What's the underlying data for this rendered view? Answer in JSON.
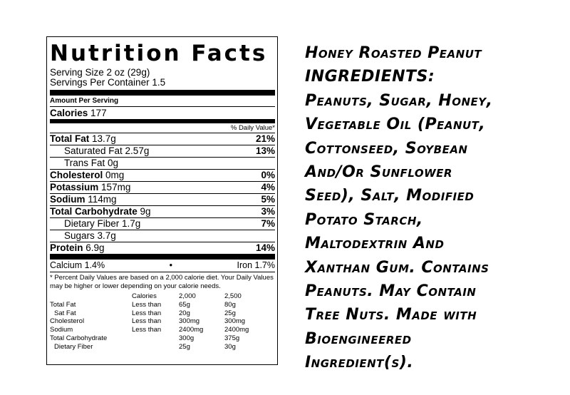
{
  "label": {
    "title": "Nutrition Facts",
    "serving_size": "Serving Size 2 oz (29g)",
    "servings_per_container": "Servings Per Container 1.5",
    "amount_per_serving": "Amount Per Serving",
    "calories_label": "Calories",
    "calories_value": "177",
    "daily_value_header": "% Daily Value*",
    "total_fat": {
      "label": "Total Fat",
      "amount": "13.7g",
      "dv": "21%"
    },
    "saturated_fat": {
      "label": "Saturated Fat 2.57g",
      "dv": "13%"
    },
    "trans_fat": {
      "label": "Trans Fat 0g"
    },
    "cholesterol": {
      "label": "Cholesterol",
      "amount": "0mg",
      "dv": "0%"
    },
    "potassium": {
      "label": "Potassium",
      "amount": "157mg",
      "dv": "4%"
    },
    "sodium": {
      "label": "Sodium",
      "amount": "114mg",
      "dv": "5%"
    },
    "total_carbohydrate": {
      "label": "Total Carbohydrate",
      "amount": "9g",
      "dv": "3%"
    },
    "dietary_fiber": {
      "label": "Dietary Fiber 1.7g",
      "dv": "7%"
    },
    "sugars": {
      "label": "Sugars 3.7g"
    },
    "protein": {
      "label": "Protein",
      "amount": "6.9g",
      "dv": "14%"
    },
    "calcium": "Calcium 1.4%",
    "bullet": "•",
    "iron": "Iron 1.7%",
    "footnote": "* Percent Daily Values are based on a 2,000 calorie diet. Your Daily Values may be higher or lower depending on your calorie needs.",
    "dv_table": {
      "header": [
        "",
        "Calories",
        "2,000",
        "2,500"
      ],
      "rows": [
        [
          "Total Fat",
          "Less than",
          "65g",
          "80g"
        ],
        [
          "Sat Fat",
          "Less than",
          "20g",
          "25g"
        ],
        [
          "Cholesterol",
          "Less than",
          "300mg",
          "300mg"
        ],
        [
          "Sodium",
          "Less than",
          "2400mg",
          "2400mg"
        ],
        [
          "Total Carbohydrate",
          "",
          "300g",
          "375g"
        ],
        [
          "Dietary Fiber",
          "",
          "25g",
          "30g"
        ]
      ]
    }
  },
  "ingredients": {
    "lines": [
      "Honey Roasted Peanut",
      "INGREDIENTS:",
      "Peanuts, Sugar, Honey,",
      "Vegetable Oil (Peanut,",
      "Cottonseed, Soybean",
      "And/Or Sunflower",
      "Seed), Salt, Modified",
      "Potato Starch,",
      "Maltodextrin And",
      "Xanthan Gum. Contains",
      "Peanuts. May Contain",
      "Tree Nuts. Made with",
      "Bioengineered",
      "Ingredient(s)."
    ]
  }
}
